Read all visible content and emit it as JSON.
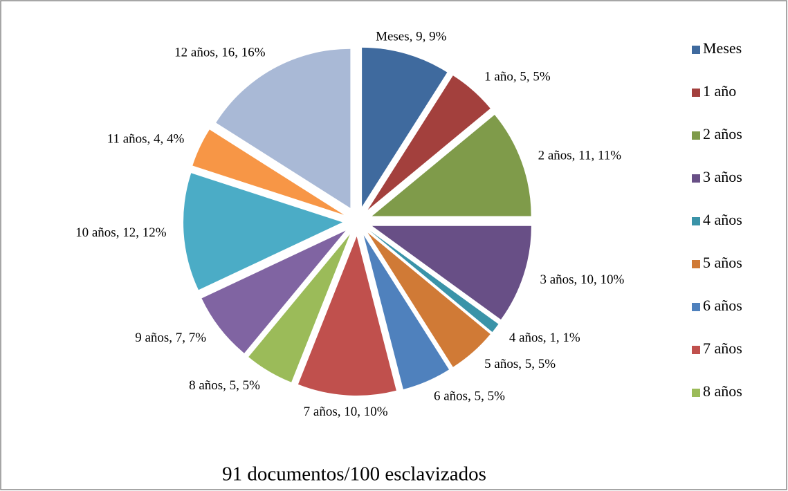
{
  "chart_data": {
    "type": "pie",
    "title": "91 documentos/100 esclavizados",
    "categories": [
      "Meses",
      "1 año",
      "2 años",
      "3 años",
      "4 años",
      "5 años",
      "6 años",
      "7 años",
      "8 años",
      "9 años",
      "10 años",
      "11 años",
      "12 años"
    ],
    "values": [
      9,
      5,
      11,
      10,
      1,
      5,
      5,
      10,
      5,
      7,
      12,
      4,
      16
    ],
    "value_labels": [
      "Meses, 9, 9%",
      "1 año, 5, 5%",
      "2 años, 11, 11%",
      "3 años, 10, 10%",
      "4 años, 1, 1%",
      "5 años, 5, 5%",
      "6 años, 5, 5%",
      "7 años, 10, 10%",
      "8 años, 5, 5%",
      "9 años, 7, 7%",
      "10 años, 12, 12%",
      "11 años, 4, 4%",
      "12 años, 16, 16%"
    ],
    "colors": [
      "#3F6A9E",
      "#A3403D",
      "#7F9B4A",
      "#684F86",
      "#3A93A8",
      "#D07A36",
      "#4F81BD",
      "#C0504D",
      "#9BBB59",
      "#8064A2",
      "#4BACC6",
      "#F79646",
      "#A9B9D6"
    ],
    "legend": "right"
  }
}
